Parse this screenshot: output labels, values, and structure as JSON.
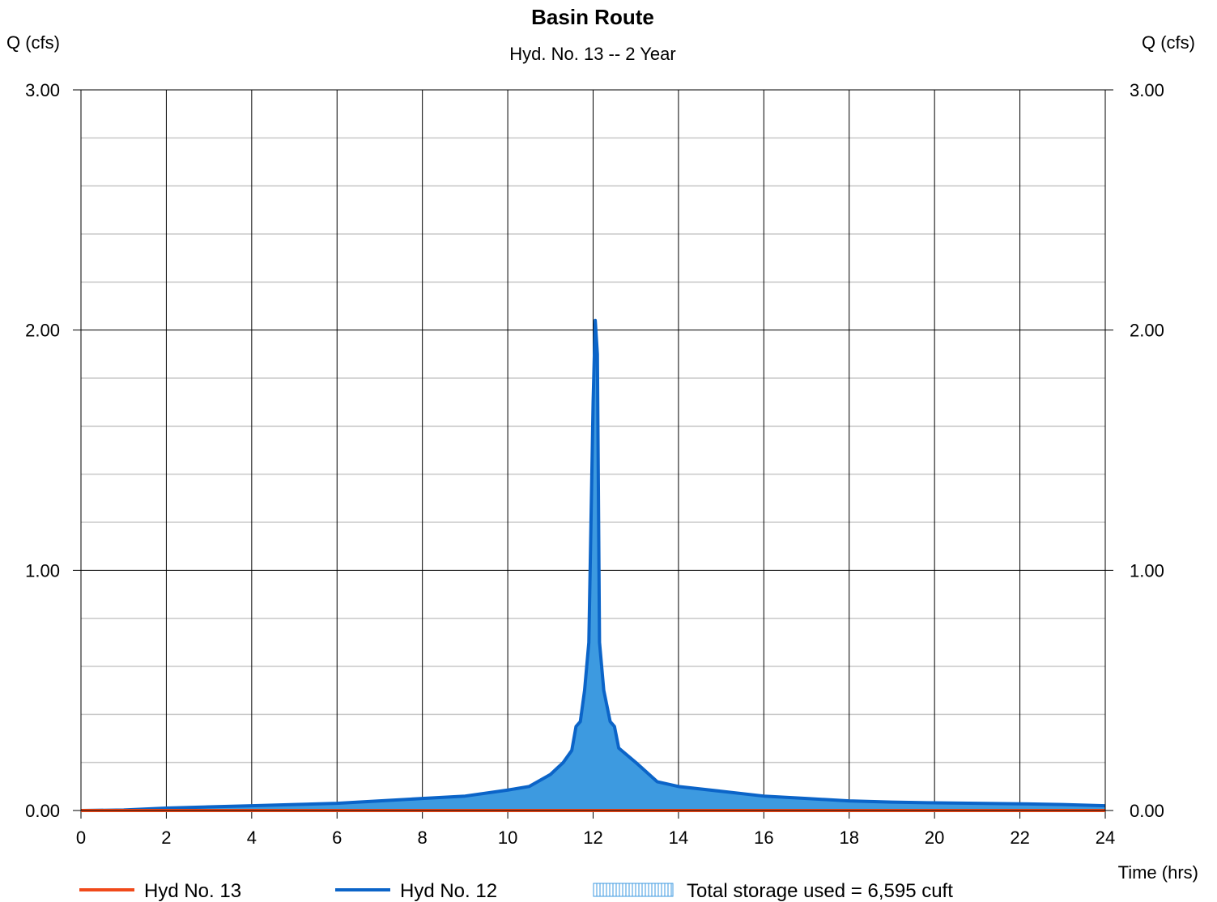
{
  "chart_data": {
    "type": "area",
    "title": "Basin Route",
    "subtitle": "Hyd. No. 13 -- 2 Year",
    "ylabel_left": "Q (cfs)",
    "ylabel_right": "Q (cfs)",
    "xlabel": "Time (hrs)",
    "xlim": [
      0,
      24
    ],
    "ylim": [
      0,
      3
    ],
    "x_ticks": [
      "0",
      "2",
      "4",
      "6",
      "8",
      "10",
      "12",
      "14",
      "16",
      "18",
      "20",
      "22",
      "24"
    ],
    "y_ticks": [
      "0.00",
      "1.00",
      "2.00",
      "3.00"
    ],
    "grid": true,
    "series": [
      {
        "name": "Hyd No. 12",
        "color": "#0b64c8",
        "fill": "#3d9ae0",
        "points": [
          [
            0,
            0
          ],
          [
            1,
            0.002
          ],
          [
            2,
            0.01
          ],
          [
            3,
            0.015
          ],
          [
            4,
            0.02
          ],
          [
            5,
            0.025
          ],
          [
            6,
            0.03
          ],
          [
            7,
            0.04
          ],
          [
            8,
            0.05
          ],
          [
            9,
            0.06
          ],
          [
            10,
            0.085
          ],
          [
            10.5,
            0.1
          ],
          [
            11,
            0.15
          ],
          [
            11.3,
            0.2
          ],
          [
            11.5,
            0.25
          ],
          [
            11.6,
            0.35
          ],
          [
            11.7,
            0.37
          ],
          [
            11.8,
            0.5
          ],
          [
            11.9,
            0.7
          ],
          [
            11.95,
            1.2
          ],
          [
            12.0,
            1.7
          ],
          [
            12.05,
            2.04
          ],
          [
            12.1,
            1.9
          ],
          [
            12.15,
            0.7
          ],
          [
            12.25,
            0.5
          ],
          [
            12.4,
            0.37
          ],
          [
            12.5,
            0.35
          ],
          [
            12.6,
            0.26
          ],
          [
            13,
            0.2
          ],
          [
            13.5,
            0.12
          ],
          [
            14,
            0.1
          ],
          [
            15,
            0.08
          ],
          [
            16,
            0.06
          ],
          [
            17,
            0.05
          ],
          [
            18,
            0.04
          ],
          [
            19,
            0.035
          ],
          [
            20,
            0.032
          ],
          [
            21,
            0.03
          ],
          [
            22,
            0.028
          ],
          [
            23,
            0.025
          ],
          [
            24,
            0.02
          ]
        ]
      },
      {
        "name": "Hyd No. 13",
        "color": "#f04a1a",
        "points": [
          [
            0,
            0
          ],
          [
            24,
            0
          ]
        ]
      }
    ],
    "legend_placement": "bottom",
    "storage_label": "Total storage used = 6,595 cuft"
  }
}
